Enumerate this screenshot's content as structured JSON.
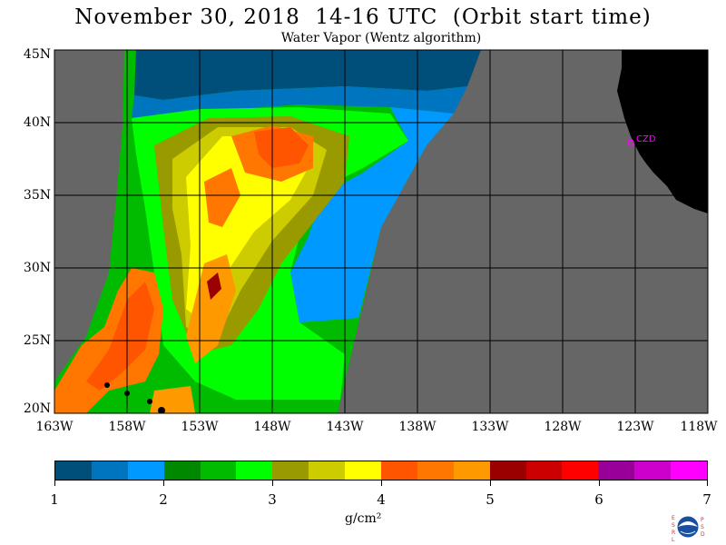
{
  "title": "November 30, 2018  14-16 UTC  (Orbit start time)",
  "subtitle": "Water Vapor (Wentz algorithm)",
  "map": {
    "lat_labels": [
      "45N",
      "40N",
      "35N",
      "30N",
      "25N",
      "20N"
    ],
    "lon_labels": [
      "163W",
      "158W",
      "153W",
      "148W",
      "143W",
      "138W",
      "133W",
      "128W",
      "123W",
      "118W"
    ],
    "station_label": "CZD",
    "land_color": "#000000",
    "nodata_color": "#666666",
    "station_color": "#ff00ff"
  },
  "colorbar": {
    "colors": [
      "#004f7a",
      "#0075bf",
      "#0099ff",
      "#008800",
      "#00bb00",
      "#00ff00",
      "#999900",
      "#cccc00",
      "#ffff00",
      "#ff5500",
      "#ff7700",
      "#ff9900",
      "#990000",
      "#cc0000",
      "#ff0000",
      "#990099",
      "#cc00cc",
      "#ff00ff"
    ],
    "tick_labels": [
      "1",
      "2",
      "3",
      "4",
      "5",
      "6",
      "7"
    ],
    "units": "g/cm²"
  },
  "logo": {
    "text_left": "ESRL",
    "text_right": "PSD",
    "text_center": "NOAA"
  }
}
